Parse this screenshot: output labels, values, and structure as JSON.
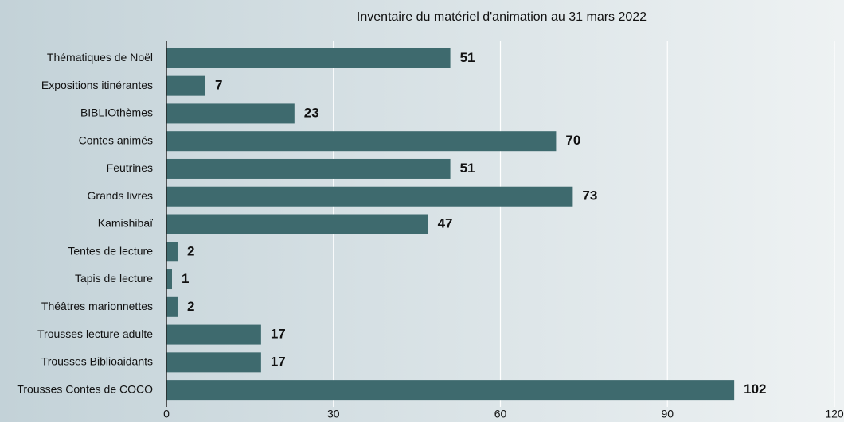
{
  "chart_data": {
    "type": "bar",
    "orientation": "horizontal",
    "title": "Inventaire du matériel d'animation au 31 mars 2022",
    "categories": [
      "Thématiques de Noël",
      "Expositions itinérantes",
      "BIBLIOthèmes",
      "Contes animés",
      "Feutrines",
      "Grands livres",
      "Kamishibaï",
      "Tentes de lecture",
      "Tapis de lecture",
      "Théâtres marionnettes",
      "Trousses lecture adulte",
      "Trousses Biblioaidants",
      "Trousses Contes de COCO"
    ],
    "values": [
      51,
      7,
      23,
      70,
      51,
      73,
      47,
      2,
      1,
      2,
      17,
      17,
      102
    ],
    "color": "#3e6a6e",
    "xlim": [
      0,
      120
    ],
    "xticks": [
      0,
      30,
      60,
      90,
      120
    ],
    "grid": true
  }
}
